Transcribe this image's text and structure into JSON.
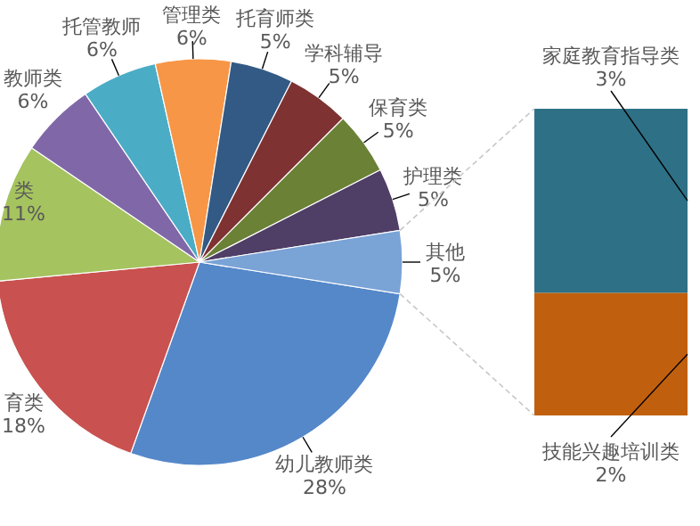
{
  "chart_data": [
    {
      "type": "pie",
      "categories": [
        "幼儿教师类",
        "育类",
        "类",
        "教师类",
        "托管教师",
        "管理类",
        "托育师类",
        "学科辅导",
        "保育类",
        "护理类",
        "其他"
      ],
      "values": [
        28,
        18,
        11,
        6,
        6,
        6,
        5,
        5,
        5,
        5,
        5
      ],
      "value_labels": [
        "28%",
        "18%",
        "11%",
        "6%",
        "6%",
        "6%",
        "5%",
        "5%",
        "5%",
        "5%",
        "5%"
      ],
      "colors": [
        "#5588c9",
        "#c9514f",
        "#a5c35f",
        "#8068a8",
        "#4bacc6",
        "#f79646",
        "#335a85",
        "#7e3232",
        "#6a8136",
        "#4f3e66",
        "#7aa3d6"
      ]
    },
    {
      "type": "bar",
      "stacked": true,
      "categories": [
        null
      ],
      "series": [
        {
          "name": "技能兴趣培训类",
          "color": "#c0600e",
          "values": [
            2
          ],
          "value_labels": [
            "2%"
          ]
        },
        {
          "name": "家庭教育指导类",
          "color": "#2e7186",
          "values": [
            3
          ],
          "value_labels": [
            "3%"
          ]
        }
      ]
    }
  ]
}
